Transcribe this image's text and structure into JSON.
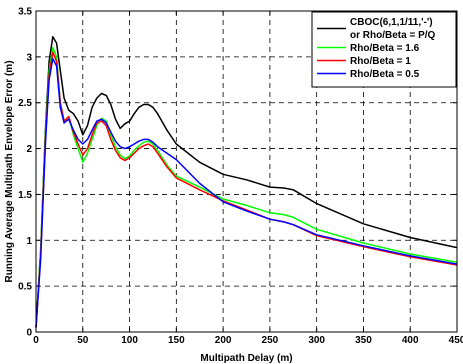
{
  "chart_data": {
    "type": "line",
    "xlabel": "Multipath Delay (m)",
    "ylabel": "Running Average Multipath Envelope Error (m)",
    "xlim": [
      0,
      450
    ],
    "ylim": [
      0,
      3.5
    ],
    "xticks": [
      0,
      50,
      100,
      150,
      200,
      250,
      300,
      350,
      400,
      450
    ],
    "yticks": [
      0,
      0.5,
      1,
      1.5,
      2,
      2.5,
      3,
      3.5
    ],
    "grid": true,
    "legend_position": "top-right",
    "series": [
      {
        "name": "CBOC(6,1,1/11,'-')",
        "name_line2": "or Rho/Beta = P/Q",
        "color": "#000000",
        "x": [
          0,
          5,
          10,
          14,
          18,
          22,
          26,
          30,
          35,
          40,
          45,
          50,
          55,
          60,
          65,
          70,
          75,
          80,
          85,
          90,
          95,
          100,
          105,
          110,
          115,
          120,
          125,
          130,
          140,
          150,
          175,
          200,
          225,
          250,
          265,
          275,
          300,
          350,
          400,
          450
        ],
        "y": [
          0.05,
          0.9,
          2.2,
          2.95,
          3.22,
          3.15,
          2.85,
          2.55,
          2.42,
          2.38,
          2.3,
          2.15,
          2.25,
          2.45,
          2.55,
          2.6,
          2.58,
          2.48,
          2.32,
          2.22,
          2.27,
          2.3,
          2.38,
          2.45,
          2.48,
          2.48,
          2.45,
          2.38,
          2.2,
          2.05,
          1.85,
          1.72,
          1.66,
          1.58,
          1.57,
          1.55,
          1.4,
          1.18,
          1.03,
          0.92
        ]
      },
      {
        "name": "Rho/Beta = 1.6",
        "color": "#00ff00",
        "x": [
          0,
          5,
          10,
          14,
          18,
          22,
          26,
          30,
          35,
          40,
          45,
          50,
          55,
          60,
          65,
          70,
          75,
          80,
          85,
          90,
          95,
          100,
          105,
          110,
          115,
          120,
          125,
          130,
          140,
          150,
          175,
          200,
          225,
          250,
          265,
          275,
          300,
          350,
          400,
          450
        ],
        "y": [
          0.05,
          0.9,
          2.15,
          2.85,
          3.1,
          3.0,
          2.5,
          2.3,
          2.35,
          2.15,
          2.0,
          1.85,
          1.95,
          2.1,
          2.25,
          2.33,
          2.3,
          2.15,
          2.02,
          1.93,
          1.89,
          1.92,
          1.98,
          2.03,
          2.07,
          2.08,
          2.05,
          1.98,
          1.82,
          1.7,
          1.58,
          1.45,
          1.38,
          1.3,
          1.28,
          1.25,
          1.12,
          0.97,
          0.85,
          0.76
        ]
      },
      {
        "name": "Rho/Beta = 1",
        "color": "#ff0000",
        "x": [
          0,
          5,
          10,
          14,
          18,
          22,
          26,
          30,
          35,
          40,
          45,
          50,
          55,
          60,
          65,
          70,
          75,
          80,
          85,
          90,
          95,
          100,
          105,
          110,
          115,
          120,
          125,
          130,
          140,
          150,
          175,
          200,
          225,
          250,
          265,
          275,
          300,
          350,
          400,
          450
        ],
        "y": [
          0.05,
          0.85,
          2.1,
          2.8,
          3.05,
          2.95,
          2.5,
          2.3,
          2.35,
          2.18,
          2.05,
          1.93,
          2.0,
          2.15,
          2.28,
          2.3,
          2.25,
          2.1,
          1.98,
          1.9,
          1.87,
          1.9,
          1.95,
          2.0,
          2.03,
          2.05,
          2.02,
          1.95,
          1.8,
          1.68,
          1.55,
          1.43,
          1.33,
          1.23,
          1.2,
          1.17,
          1.05,
          0.93,
          0.82,
          0.73
        ]
      },
      {
        "name": "Rho/Beta = 0.5",
        "color": "#0000ff",
        "x": [
          0,
          5,
          10,
          14,
          18,
          22,
          26,
          30,
          35,
          40,
          45,
          50,
          55,
          60,
          65,
          70,
          75,
          80,
          85,
          90,
          95,
          100,
          105,
          110,
          115,
          120,
          125,
          130,
          140,
          150,
          175,
          200,
          225,
          250,
          265,
          275,
          300,
          350,
          400,
          450
        ],
        "y": [
          0.05,
          0.8,
          2.05,
          2.75,
          2.98,
          2.9,
          2.45,
          2.28,
          2.32,
          2.2,
          2.1,
          2.05,
          2.1,
          2.2,
          2.3,
          2.32,
          2.28,
          2.18,
          2.08,
          2.02,
          2.0,
          2.02,
          2.05,
          2.08,
          2.1,
          2.1,
          2.07,
          2.02,
          1.95,
          1.88,
          1.62,
          1.42,
          1.32,
          1.23,
          1.2,
          1.17,
          1.06,
          0.94,
          0.83,
          0.74
        ]
      }
    ]
  }
}
